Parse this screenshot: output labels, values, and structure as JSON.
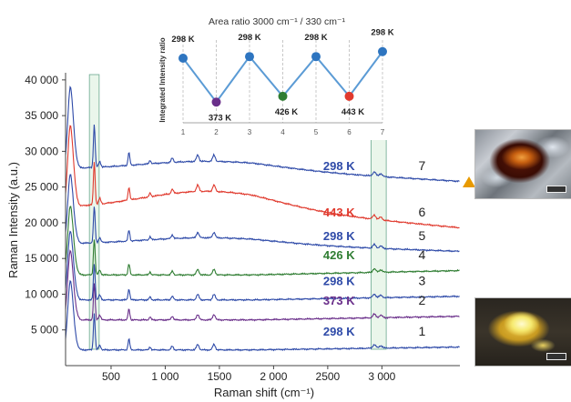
{
  "chart_data": [
    {
      "type": "line",
      "title": "",
      "xlabel": "Raman shift (cm⁻¹)",
      "ylabel": "Raman Intensity (a.u.)",
      "xlim": [
        80,
        3720
      ],
      "ylim": [
        0,
        41000
      ],
      "x_ticks": [
        500,
        1000,
        1500,
        2000,
        2500,
        3000
      ],
      "x_tick_labels": [
        "500",
        "1 000",
        "1500",
        "2 000",
        "2500",
        "3 000"
      ],
      "y_ticks": [
        5000,
        10000,
        15000,
        20000,
        25000,
        30000,
        35000,
        40000
      ],
      "y_tick_labels": [
        "5 000",
        "10 000",
        "15 000",
        "20 000",
        "25 000",
        "30 000",
        "35 000",
        "40 000"
      ],
      "highlight_bands": [
        [
          300,
          390
        ],
        [
          2900,
          3040
        ]
      ],
      "series": [
        {
          "name": "298 K",
          "index": "1",
          "color": "#2e4aa8",
          "baseline": 2200,
          "bump": 0,
          "tail": 2600
        },
        {
          "name": "373 K",
          "index": "2",
          "color": "#6a2f8a",
          "baseline": 6400,
          "bump": 0,
          "tail": 6900
        },
        {
          "name": "298 K",
          "index": "3",
          "color": "#2e4aa8",
          "baseline": 9200,
          "bump": 0,
          "tail": 9700
        },
        {
          "name": "426 K",
          "index": "4",
          "color": "#2f7d32",
          "baseline": 12700,
          "bump": 0,
          "tail": 13300
        },
        {
          "name": "298 K",
          "index": "5",
          "color": "#2e4aa8",
          "baseline": 17000,
          "bump": 900,
          "tail": 16000
        },
        {
          "name": "443 K",
          "index": "6",
          "color": "#e03a2e",
          "baseline": 22000,
          "bump": 2400,
          "tail": 19300
        },
        {
          "name": "298 K",
          "index": "7",
          "color": "#2e4aa8",
          "baseline": 27500,
          "bump": 1100,
          "tail": 25800
        }
      ],
      "peaks": [
        {
          "x": 120,
          "height": 9500,
          "width": 22
        },
        {
          "x": 150,
          "height": 3500,
          "width": 25
        },
        {
          "x": 345,
          "height": 6000,
          "width": 8
        },
        {
          "x": 395,
          "height": 800,
          "width": 10
        },
        {
          "x": 665,
          "height": 1800,
          "width": 8
        },
        {
          "x": 860,
          "height": 500,
          "width": 8
        },
        {
          "x": 1065,
          "height": 600,
          "width": 10
        },
        {
          "x": 1300,
          "height": 900,
          "width": 12
        },
        {
          "x": 1450,
          "height": 900,
          "width": 12
        },
        {
          "x": 2930,
          "height": 600,
          "width": 14
        },
        {
          "x": 2990,
          "height": 400,
          "width": 14
        }
      ],
      "legend": "inline labels",
      "grid": false
    },
    {
      "type": "line",
      "title": "Area ratio 3000 cm⁻¹ / 330 cm⁻¹",
      "ylabel": "Integrated Intensity ratio",
      "x": [
        1,
        2,
        3,
        4,
        5,
        6,
        7
      ],
      "y": [
        0.78,
        0.25,
        0.8,
        0.32,
        0.8,
        0.32,
        0.86
      ],
      "point_labels": [
        "298 K",
        "373 K",
        "298 K",
        "426 K",
        "298 K",
        "443 K",
        "298 K"
      ],
      "point_colors": [
        "#2e75c0",
        "#6a2f8a",
        "#2e75c0",
        "#2f7d32",
        "#2e75c0",
        "#e03a2e",
        "#2e75c0"
      ],
      "line_color": "#5b9bd5",
      "grid": true
    }
  ],
  "photos": {
    "top": "sample-micrograph-after",
    "bottom": "sample-micrograph-before"
  }
}
